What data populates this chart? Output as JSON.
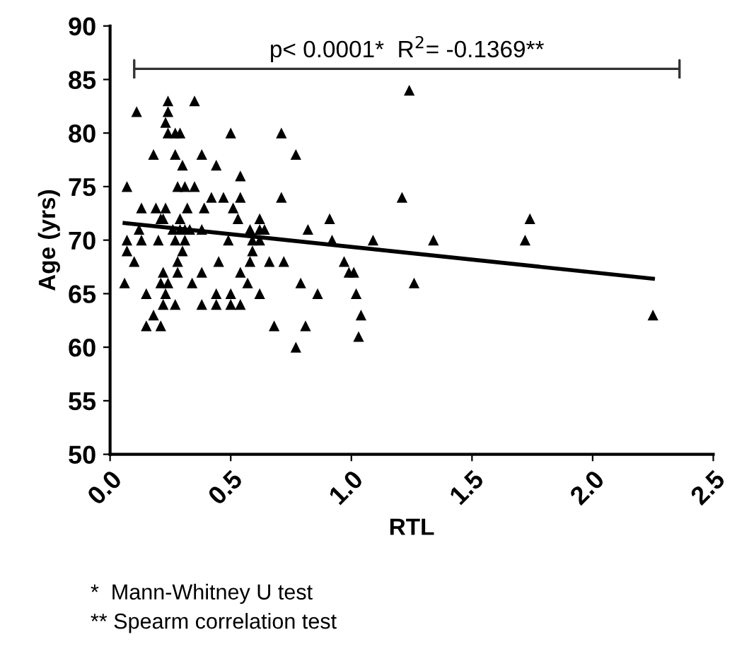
{
  "chart_data": {
    "type": "scatter",
    "xlabel": "RTL",
    "ylabel": "Age (yrs)",
    "xlim": [
      0,
      2.5
    ],
    "xticks": [
      {
        "value": 0,
        "label": "0.0"
      },
      {
        "value": 0.5,
        "label": "0.5"
      },
      {
        "value": 1,
        "label": "1.0"
      },
      {
        "value": 1.5,
        "label": "1.5"
      },
      {
        "value": 2,
        "label": "2.0"
      },
      {
        "value": 2.5,
        "label": "2.5"
      }
    ],
    "ylim": [
      50,
      90
    ],
    "yticks": [
      50,
      55,
      60,
      65,
      70,
      75,
      80,
      85,
      90
    ],
    "grid": false,
    "legend": false,
    "series": [
      {
        "color": "#000000",
        "marker": "triangle",
        "x": [
          0.11,
          0.07,
          0.06,
          0.07,
          0.07,
          0.13,
          0.12,
          0.13,
          0.1,
          0.15,
          0.18,
          0.19,
          0.2,
          0.21,
          0.22,
          0.23,
          0.21,
          0.22,
          0.24,
          0.23,
          0.22,
          0.18,
          0.15,
          0.21,
          0.24,
          0.24,
          0.23,
          0.24,
          0.27,
          0.29,
          0.27,
          0.3,
          0.28,
          0.31,
          0.35,
          0.32,
          0.29,
          0.29,
          0.31,
          0.26,
          0.27,
          0.31,
          0.33,
          0.3,
          0.28,
          0.28,
          0.27,
          0.35,
          0.38,
          0.34,
          0.38,
          0.38,
          0.38,
          0.39,
          0.42,
          0.44,
          0.47,
          0.45,
          0.44,
          0.44,
          0.5,
          0.51,
          0.49,
          0.5,
          0.5,
          0.54,
          0.54,
          0.54,
          0.53,
          0.54,
          0.57,
          0.58,
          0.59,
          0.59,
          0.58,
          0.62,
          0.62,
          0.62,
          0.64,
          0.62,
          0.66,
          0.68,
          0.71,
          0.71,
          0.72,
          0.77,
          0.77,
          0.79,
          0.81,
          0.82,
          0.86,
          0.91,
          0.92,
          1.09,
          0.97,
          0.99,
          1.01,
          1.02,
          1.04,
          1.03,
          1.21,
          1.24,
          1.26,
          1.34,
          1.72,
          1.74,
          2.25
        ],
        "values": [
          82,
          75,
          66,
          69,
          70,
          73,
          71,
          70,
          68,
          65,
          78,
          73,
          70,
          72,
          72,
          73,
          66,
          67,
          66,
          65,
          64,
          63,
          62,
          62,
          83,
          82,
          81,
          80,
          80,
          80,
          78,
          77,
          75,
          75,
          75,
          73,
          72,
          71,
          71,
          71,
          70,
          70,
          71,
          69,
          68,
          67,
          64,
          83,
          78,
          66,
          67,
          64,
          71,
          73,
          74,
          77,
          74,
          68,
          65,
          64,
          80,
          73,
          70,
          65,
          64,
          64,
          74,
          76,
          72,
          67,
          66,
          68,
          69,
          70,
          71,
          72,
          71,
          70,
          71,
          65,
          68,
          62,
          74,
          80,
          68,
          78,
          60,
          66,
          62,
          71,
          65,
          72,
          70,
          70,
          68,
          67,
          67,
          65,
          63,
          61,
          74,
          84,
          66,
          70,
          70,
          72,
          63
        ]
      },
      {
        "type": "line",
        "color": "#000000",
        "marker": "none",
        "line_style": "solid",
        "x": [
          0.06,
          2.25
        ],
        "values": [
          71.6,
          66.4
        ]
      }
    ],
    "annotations": [
      "p< 0.0001*  R$^{2}$= -0.1369**",
      "*  Mann-Whitney U test",
      "** Spearm correlation test"
    ]
  }
}
